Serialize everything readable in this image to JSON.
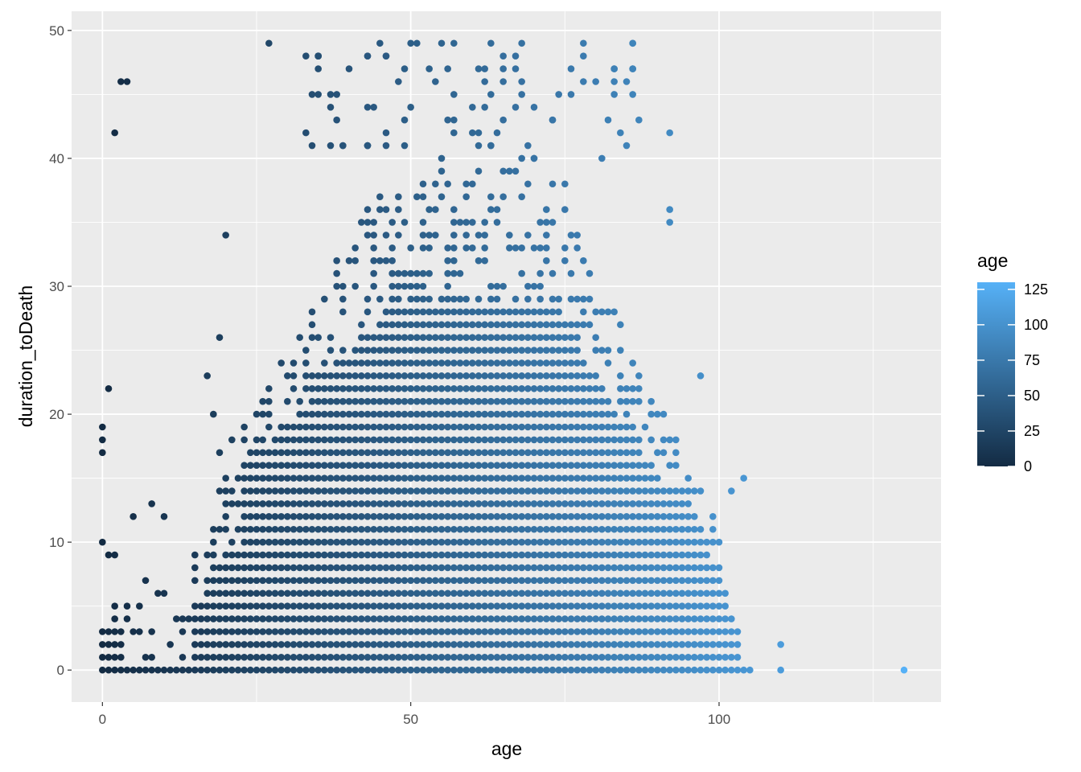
{
  "chart_data": {
    "type": "scatter",
    "title": "",
    "xlabel": "age",
    "ylabel": "duration_toDeath",
    "xlim": [
      -5,
      136
    ],
    "ylim": [
      -2.5,
      51.5
    ],
    "x_ticks": [
      0,
      50,
      100
    ],
    "x_tick_labels": [
      "0",
      "50",
      "100"
    ],
    "y_ticks": [
      0,
      10,
      20,
      30,
      40,
      50
    ],
    "y_tick_labels": [
      "0",
      "10",
      "20",
      "30",
      "40",
      "50"
    ],
    "background": "#ebebeb",
    "grid": true,
    "color_by": "age",
    "color_low": "#132b43",
    "color_high": "#56b1f7",
    "color_range": [
      0,
      130
    ],
    "legend": {
      "title": "age",
      "position": "right",
      "breaks": [
        0,
        25,
        50,
        75,
        100,
        125
      ],
      "break_labels": [
        "0",
        "25",
        "50",
        "75",
        "100",
        "125"
      ]
    },
    "points_approximate": {
      "outliers": [
        [
          130,
          0
        ],
        [
          110,
          0
        ],
        [
          110,
          2
        ],
        [
          105,
          0
        ]
      ],
      "sparse_young": [
        [
          0,
          17
        ],
        [
          0,
          18
        ],
        [
          0,
          19
        ],
        [
          1,
          22
        ],
        [
          2,
          42
        ],
        [
          3,
          46
        ],
        [
          4,
          46
        ],
        [
          5,
          12
        ],
        [
          8,
          13
        ],
        [
          10,
          12
        ],
        [
          20,
          34
        ],
        [
          27,
          49
        ],
        [
          19,
          26
        ],
        [
          18,
          20
        ],
        [
          17,
          23
        ]
      ],
      "upper_tail_samples": [
        [
          35,
          48
        ],
        [
          40,
          47
        ],
        [
          43,
          48
        ],
        [
          50,
          49
        ],
        [
          51,
          49
        ],
        [
          55,
          49
        ],
        [
          57,
          49
        ],
        [
          63,
          49
        ],
        [
          78,
          49
        ],
        [
          92,
          42
        ],
        [
          87,
          43
        ],
        [
          92,
          35
        ],
        [
          92,
          36
        ],
        [
          104,
          15
        ],
        [
          102,
          14
        ],
        [
          97,
          23
        ]
      ],
      "dense_region": {
        "x_range": [
          0,
          104
        ],
        "y_range": [
          0,
          40
        ],
        "envelope_ymax_by_age": [
          [
            0,
            11
          ],
          [
            5,
            8
          ],
          [
            10,
            8
          ],
          [
            15,
            10
          ],
          [
            20,
            19
          ],
          [
            25,
            23
          ],
          [
            30,
            26
          ],
          [
            35,
            30
          ],
          [
            40,
            34
          ],
          [
            45,
            37
          ],
          [
            50,
            39
          ],
          [
            55,
            39
          ],
          [
            60,
            39
          ],
          [
            65,
            39
          ],
          [
            70,
            39
          ],
          [
            75,
            38
          ],
          [
            80,
            30
          ],
          [
            85,
            26
          ],
          [
            90,
            20
          ],
          [
            95,
            18
          ],
          [
            100,
            10
          ],
          [
            103,
            4
          ]
        ]
      }
    }
  }
}
